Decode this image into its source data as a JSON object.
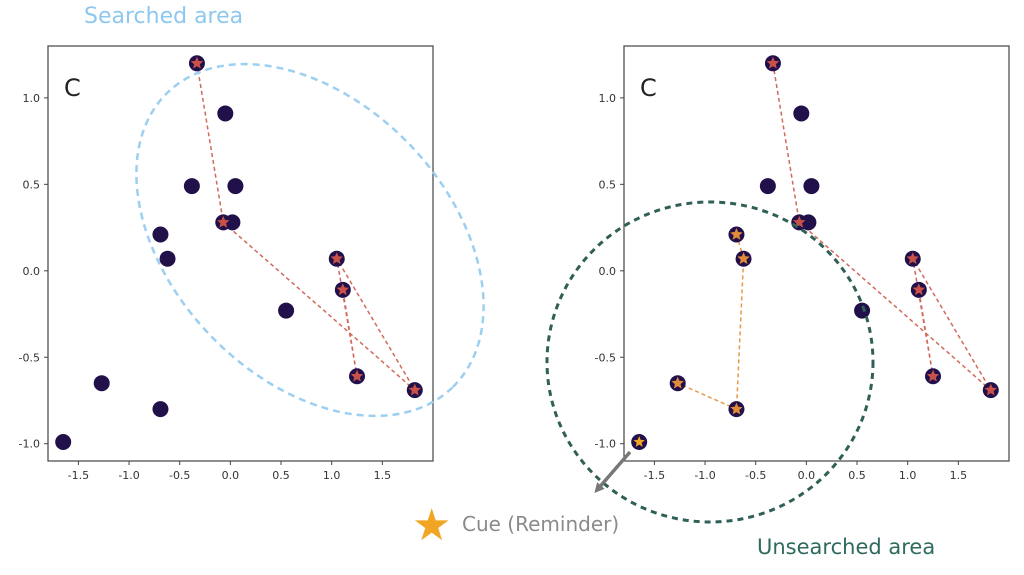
{
  "labels": {
    "searched_area": "Searched area",
    "unsearched_area": "Unsearched area",
    "cue": "Cue (Reminder)",
    "cue_star": "★"
  },
  "colors": {
    "searched": "#9dcff0",
    "unsearched": "#2f5f56",
    "node": "#22104a",
    "visited_fill": "#c9514a",
    "cue_path_fill": "#e08a3a",
    "cue_star": "#f0a624",
    "red_edge": "#d06a5a",
    "orange_edge": "#e69a45",
    "arrow": "#777777"
  },
  "chart_data": [
    {
      "type": "scatter",
      "panel_label": "C",
      "xlim": [
        -1.8,
        2.0
      ],
      "ylim": [
        -1.1,
        1.3
      ],
      "xticks": [
        "-1.5",
        "-1.0",
        "-0.5",
        "0.0",
        "0.5",
        "1.0",
        "1.5"
      ],
      "yticks": [
        "-1.0",
        "-0.5",
        "0.0",
        "0.5",
        "1.0"
      ],
      "points": [
        {
          "x": -0.33,
          "y": 1.2,
          "visited": true
        },
        {
          "x": -0.05,
          "y": 0.91,
          "visited": false
        },
        {
          "x": -0.38,
          "y": 0.49,
          "visited": false
        },
        {
          "x": 0.05,
          "y": 0.49,
          "visited": false
        },
        {
          "x": 0.02,
          "y": 0.28,
          "visited": false
        },
        {
          "x": -0.07,
          "y": 0.28,
          "visited": true
        },
        {
          "x": -0.69,
          "y": 0.21,
          "visited": false
        },
        {
          "x": -0.62,
          "y": 0.07,
          "visited": false
        },
        {
          "x": 1.05,
          "y": 0.07,
          "visited": true
        },
        {
          "x": 1.11,
          "y": -0.11,
          "visited": true
        },
        {
          "x": 0.55,
          "y": -0.23,
          "visited": false
        },
        {
          "x": 1.25,
          "y": -0.61,
          "visited": true
        },
        {
          "x": 1.82,
          "y": -0.69,
          "visited": true
        },
        {
          "x": -1.27,
          "y": -0.65,
          "visited": false
        },
        {
          "x": -0.69,
          "y": -0.8,
          "visited": false
        },
        {
          "x": -1.65,
          "y": -0.99,
          "visited": false
        }
      ],
      "red_path": [
        {
          "x": -0.33,
          "y": 1.2
        },
        {
          "x": -0.07,
          "y": 0.28
        },
        {
          "x": 1.82,
          "y": -0.69
        },
        {
          "x": 1.05,
          "y": 0.07
        },
        {
          "x": 1.25,
          "y": -0.61
        },
        {
          "x": 1.11,
          "y": -0.11
        }
      ]
    },
    {
      "type": "scatter",
      "panel_label": "C",
      "xlim": [
        -1.8,
        2.0
      ],
      "ylim": [
        -1.1,
        1.3
      ],
      "xticks": [
        "-1.5",
        "-1.0",
        "-0.5",
        "0.0",
        "0.5",
        "1.0",
        "1.5"
      ],
      "yticks": [
        "-1.0",
        "-0.5",
        "0.0",
        "0.5",
        "1.0"
      ],
      "points": [
        {
          "x": -0.33,
          "y": 1.2,
          "visited": true
        },
        {
          "x": -0.05,
          "y": 0.91,
          "visited": false
        },
        {
          "x": -0.38,
          "y": 0.49,
          "visited": false
        },
        {
          "x": 0.05,
          "y": 0.49,
          "visited": false
        },
        {
          "x": 0.02,
          "y": 0.28,
          "visited": false
        },
        {
          "x": -0.07,
          "y": 0.28,
          "visited": true
        },
        {
          "x": -0.69,
          "y": 0.21,
          "visited": "cue"
        },
        {
          "x": -0.62,
          "y": 0.07,
          "visited": "cue"
        },
        {
          "x": 1.05,
          "y": 0.07,
          "visited": true
        },
        {
          "x": 1.11,
          "y": -0.11,
          "visited": true
        },
        {
          "x": 0.55,
          "y": -0.23,
          "visited": false
        },
        {
          "x": 1.25,
          "y": -0.61,
          "visited": true
        },
        {
          "x": 1.82,
          "y": -0.69,
          "visited": true
        },
        {
          "x": -1.27,
          "y": -0.65,
          "visited": "cue"
        },
        {
          "x": -0.69,
          "y": -0.8,
          "visited": "cue"
        },
        {
          "x": -1.65,
          "y": -0.99,
          "visited": "star"
        }
      ],
      "red_path": [
        {
          "x": -0.33,
          "y": 1.2
        },
        {
          "x": -0.07,
          "y": 0.28
        },
        {
          "x": 1.82,
          "y": -0.69
        },
        {
          "x": 1.05,
          "y": 0.07
        },
        {
          "x": 1.25,
          "y": -0.61
        },
        {
          "x": 1.11,
          "y": -0.11
        }
      ],
      "orange_path": [
        {
          "x": -0.69,
          "y": 0.21
        },
        {
          "x": -0.62,
          "y": 0.07
        },
        {
          "x": -0.69,
          "y": -0.8
        },
        {
          "x": -1.27,
          "y": -0.65
        }
      ]
    }
  ]
}
